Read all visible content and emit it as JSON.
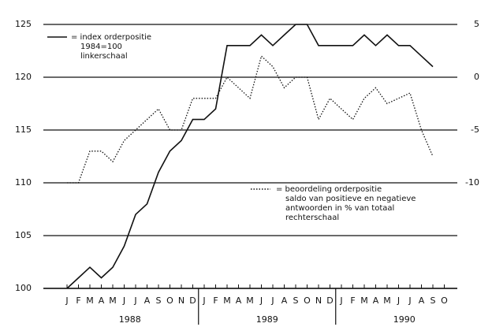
{
  "chart_data": {
    "type": "line",
    "categories": [
      "J",
      "F",
      "M",
      "A",
      "M",
      "J",
      "J",
      "A",
      "S",
      "O",
      "N",
      "D",
      "J",
      "F",
      "M",
      "A",
      "M",
      "J",
      "J",
      "A",
      "S",
      "O",
      "N",
      "D",
      "J",
      "F",
      "M",
      "A",
      "M",
      "J",
      "J",
      "A",
      "S",
      "O"
    ],
    "years": [
      "1988",
      "1989",
      "1990"
    ],
    "series": [
      {
        "name": "= index orderpositie",
        "description": [
          "1984=100",
          "linkerschaal"
        ],
        "color": "#111111",
        "dash": "solid",
        "values": [
          100,
          101,
          102,
          101,
          102,
          104,
          107,
          108,
          111,
          113,
          114,
          116,
          116,
          117,
          123,
          123,
          123,
          124,
          123,
          124,
          125,
          125,
          123,
          123,
          123,
          123,
          124,
          123,
          124,
          123,
          123,
          122,
          121,
          null
        ]
      },
      {
        "name": "= beoordeling orderpositie",
        "description": [
          "saldo van positieve en negatieve",
          "antwoorden in % van totaal",
          "rechterschaal"
        ],
        "color": "#111111",
        "dash": "dotted",
        "axis": "y2",
        "values": [
          -10,
          -10,
          -7,
          -7,
          -8,
          -6,
          -5,
          -4,
          -3,
          -5,
          -5,
          -2,
          -2,
          -2,
          0,
          -1,
          -2,
          2,
          1,
          -1,
          0,
          0,
          -4,
          -2,
          -3,
          -4,
          -2,
          -1,
          -2.5,
          -2,
          -1.5,
          -5,
          -7.5,
          null
        ]
      }
    ],
    "ylim": [
      100,
      125
    ],
    "yticks": [
      100,
      105,
      110,
      115,
      120,
      125
    ],
    "y2lim": [
      -20,
      5
    ],
    "y2ticks": [
      -10,
      -5,
      0,
      5
    ],
    "grid": true
  }
}
